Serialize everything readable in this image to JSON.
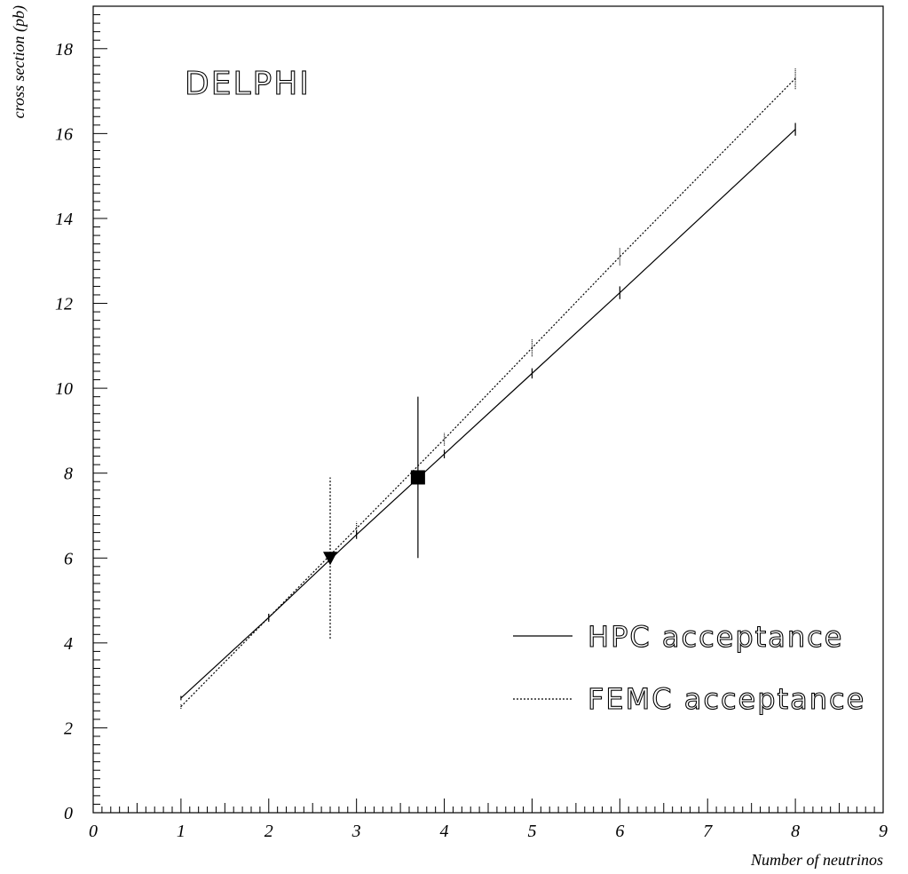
{
  "chart_data": {
    "type": "line",
    "title": "",
    "plot_label": "DELPHI",
    "xlabel": "Number of neutrinos",
    "ylabel": "cross section (pb)",
    "xlim": [
      0,
      9
    ],
    "ylim": [
      0,
      19
    ],
    "x_ticks": [
      0,
      1,
      2,
      3,
      4,
      5,
      6,
      7,
      8,
      9
    ],
    "y_ticks": [
      0,
      2,
      4,
      6,
      8,
      10,
      12,
      14,
      16,
      18
    ],
    "grid": false,
    "legend_position": "bottom-right",
    "series": [
      {
        "name": "HPC acceptance",
        "style": "solid",
        "color": "#000000",
        "x": [
          1,
          2,
          3,
          4,
          5,
          6,
          8
        ],
        "y": [
          2.7,
          4.6,
          6.55,
          8.45,
          10.35,
          12.25,
          16.1
        ],
        "yerr": [
          0.05,
          0.08,
          0.1,
          0.1,
          0.12,
          0.15,
          0.15
        ]
      },
      {
        "name": "FEMC acceptance",
        "style": "dotted",
        "color": "#000000",
        "x": [
          1,
          2,
          3,
          4,
          5,
          6,
          8
        ],
        "y": [
          2.5,
          4.6,
          6.7,
          8.8,
          10.95,
          13.1,
          17.3
        ],
        "yerr": [
          0.05,
          0.1,
          0.15,
          0.15,
          0.2,
          0.2,
          0.25
        ]
      }
    ],
    "measurements": [
      {
        "marker": "square",
        "x": 3.7,
        "y": 7.9,
        "yerr_low": 1.9,
        "yerr_high": 1.9,
        "error_style": "solid"
      },
      {
        "marker": "triangle-down",
        "x": 2.7,
        "y": 6.0,
        "yerr_low": 1.9,
        "yerr_high": 1.9,
        "error_style": "dotted"
      }
    ]
  }
}
